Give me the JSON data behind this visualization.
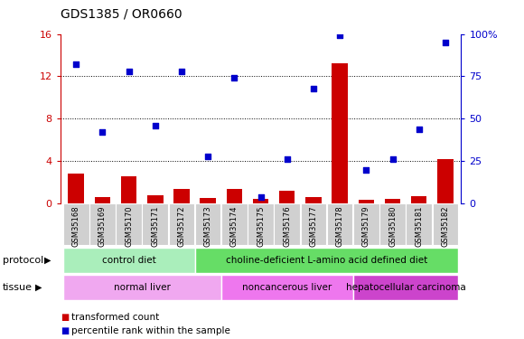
{
  "title": "GDS1385 / OR0660",
  "samples": [
    "GSM35168",
    "GSM35169",
    "GSM35170",
    "GSM35171",
    "GSM35172",
    "GSM35173",
    "GSM35174",
    "GSM35175",
    "GSM35176",
    "GSM35177",
    "GSM35178",
    "GSM35179",
    "GSM35180",
    "GSM35181",
    "GSM35182"
  ],
  "transformed_count": [
    2.8,
    0.6,
    2.6,
    0.8,
    1.4,
    0.5,
    1.4,
    0.4,
    1.2,
    0.6,
    13.2,
    0.3,
    0.4,
    0.7,
    4.2
  ],
  "percentile_rank": [
    82,
    42,
    78,
    46,
    78,
    28,
    74,
    4,
    26,
    68,
    99,
    20,
    26,
    44,
    95
  ],
  "bar_color": "#cc0000",
  "dot_color": "#0000cc",
  "left_yaxis": {
    "min": 0,
    "max": 16,
    "ticks": [
      0,
      4,
      8,
      12,
      16
    ],
    "color": "#cc0000"
  },
  "right_yaxis": {
    "min": 0,
    "max": 100,
    "ticks": [
      0,
      25,
      50,
      75,
      100
    ],
    "color": "#0000cc"
  },
  "grid_yticks": [
    4,
    8,
    12
  ],
  "protocol_groups": [
    {
      "label": "control diet",
      "start": 0,
      "end": 4,
      "color": "#aaeebb"
    },
    {
      "label": "choline-deficient L-amino acid defined diet",
      "start": 5,
      "end": 14,
      "color": "#66dd66"
    }
  ],
  "tissue_groups": [
    {
      "label": "normal liver",
      "start": 0,
      "end": 5,
      "color": "#f0a8f0"
    },
    {
      "label": "noncancerous liver",
      "start": 6,
      "end": 10,
      "color": "#ee77ee"
    },
    {
      "label": "hepatocellular carcinoma",
      "start": 11,
      "end": 14,
      "color": "#cc44cc"
    }
  ],
  "protocol_label": "protocol",
  "tissue_label": "tissue",
  "legend_bar_label": "transformed count",
  "legend_dot_label": "percentile rank within the sample",
  "plot_bg": "#ffffff",
  "sample_box_color": "#d0d0d0"
}
